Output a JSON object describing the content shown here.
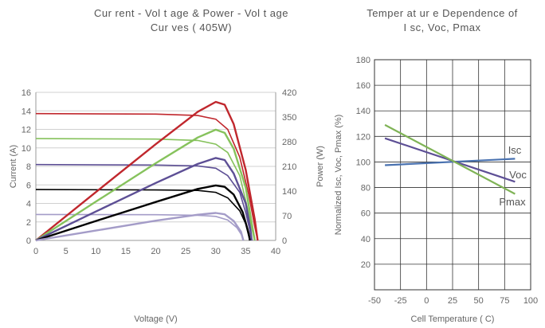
{
  "chart_data": [
    {
      "type": "line",
      "title_line1": "Cur rent - Vol t age & Power - Vol t age",
      "title_line2": "Cur ves ( 405W)",
      "xlabel": "Voltage (V)",
      "ylabel": "Current (A)",
      "y2label": "Power (W)",
      "xlim": [
        0,
        40
      ],
      "ylim": [
        0,
        16
      ],
      "y2lim": [
        0,
        420
      ],
      "xticks": [
        0,
        5,
        10,
        15,
        20,
        25,
        30,
        35,
        40
      ],
      "yticks": [
        0,
        2,
        4,
        6,
        8,
        10,
        12,
        14,
        16
      ],
      "y2ticks": [
        0,
        70,
        140,
        210,
        280,
        350,
        420
      ],
      "grid": "horizontal",
      "colors": {
        "red": "#c0272d",
        "green": "#86c25c",
        "purple": "#5d4f95",
        "black": "#000000",
        "lavender": "#a49cc8"
      },
      "iv_series": [
        {
          "color": "#c0272d",
          "points": [
            [
              0,
              13.7
            ],
            [
              20,
              13.65
            ],
            [
              27,
              13.5
            ],
            [
              30,
              13.1
            ],
            [
              32,
              12.0
            ],
            [
              34,
              9.0
            ],
            [
              35.5,
              5.0
            ],
            [
              36.5,
              1.5
            ],
            [
              37,
              0
            ]
          ]
        },
        {
          "color": "#86c25c",
          "points": [
            [
              0,
              11.0
            ],
            [
              20,
              10.95
            ],
            [
              27,
              10.8
            ],
            [
              30,
              10.4
            ],
            [
              32,
              9.5
            ],
            [
              34,
              7.0
            ],
            [
              35.3,
              3.5
            ],
            [
              36.2,
              0.8
            ],
            [
              36.5,
              0
            ]
          ]
        },
        {
          "color": "#5d4f95",
          "points": [
            [
              0,
              8.2
            ],
            [
              20,
              8.15
            ],
            [
              27,
              8.05
            ],
            [
              30,
              7.8
            ],
            [
              32,
              7.0
            ],
            [
              34,
              5.2
            ],
            [
              35,
              3.0
            ],
            [
              35.8,
              0.8
            ],
            [
              36,
              0
            ]
          ]
        },
        {
          "color": "#000000",
          "points": [
            [
              0,
              5.5
            ],
            [
              20,
              5.45
            ],
            [
              27,
              5.4
            ],
            [
              30,
              5.2
            ],
            [
              32,
              4.6
            ],
            [
              34,
              3.2
            ],
            [
              35,
              1.8
            ],
            [
              35.5,
              0.5
            ],
            [
              35.7,
              0
            ]
          ]
        },
        {
          "color": "#a49cc8",
          "points": [
            [
              0,
              2.8
            ],
            [
              20,
              2.78
            ],
            [
              27,
              2.72
            ],
            [
              30,
              2.6
            ],
            [
              32,
              2.2
            ],
            [
              33.5,
              1.4
            ],
            [
              34.3,
              0.6
            ],
            [
              34.6,
              0
            ]
          ]
        }
      ],
      "pv_series": [
        {
          "color": "#c0272d",
          "points": [
            [
              0,
              0
            ],
            [
              10,
              137
            ],
            [
              20,
              273
            ],
            [
              27,
              365
            ],
            [
              30,
              393
            ],
            [
              31.5,
              385
            ],
            [
              33,
              330
            ],
            [
              35,
              200
            ],
            [
              36.5,
              60
            ],
            [
              37,
              0
            ]
          ]
        },
        {
          "color": "#86c25c",
          "points": [
            [
              0,
              0
            ],
            [
              10,
              110
            ],
            [
              20,
              219
            ],
            [
              27,
              292
            ],
            [
              30,
              314
            ],
            [
              31.5,
              305
            ],
            [
              33,
              260
            ],
            [
              35,
              150
            ],
            [
              36.2,
              30
            ],
            [
              36.5,
              0
            ]
          ]
        },
        {
          "color": "#5d4f95",
          "points": [
            [
              0,
              0
            ],
            [
              10,
              82
            ],
            [
              20,
              163
            ],
            [
              27,
              217
            ],
            [
              30,
              234
            ],
            [
              31.5,
              228
            ],
            [
              33,
              190
            ],
            [
              35,
              105
            ],
            [
              35.8,
              30
            ],
            [
              36,
              0
            ]
          ]
        },
        {
          "color": "#000000",
          "points": [
            [
              0,
              0
            ],
            [
              10,
              55
            ],
            [
              20,
              109
            ],
            [
              27,
              146
            ],
            [
              30,
              156
            ],
            [
              31.5,
              152
            ],
            [
              33,
              130
            ],
            [
              34.5,
              80
            ],
            [
              35.5,
              20
            ],
            [
              35.7,
              0
            ]
          ]
        },
        {
          "color": "#a49cc8",
          "points": [
            [
              0,
              0
            ],
            [
              10,
              28
            ],
            [
              20,
              56
            ],
            [
              27,
              73
            ],
            [
              30,
              78
            ],
            [
              31.5,
              74
            ],
            [
              33,
              55
            ],
            [
              34.2,
              25
            ],
            [
              34.6,
              0
            ]
          ]
        }
      ]
    },
    {
      "type": "line",
      "title_line1": "Temper at ur e Dependence of",
      "title_line2": "I sc, Voc, Pmax",
      "xlabel": "Cell Temperature ( C)",
      "ylabel": "Normalized Isc, Voc, Pmax (%)",
      "xlim": [
        -50,
        100
      ],
      "ylim": [
        0,
        180
      ],
      "xticks": [
        -50,
        -25,
        0,
        25,
        50,
        75,
        100
      ],
      "yticks": [
        20,
        40,
        60,
        80,
        100,
        120,
        140,
        160,
        180
      ],
      "grid": "both",
      "series": [
        {
          "name": "Isc",
          "color": "#4a72b0",
          "x": [
            -40,
            85
          ],
          "y": [
            97.5,
            102.5
          ]
        },
        {
          "name": "Voc",
          "color": "#5d4f95",
          "x": [
            -40,
            85
          ],
          "y": [
            118.5,
            84.5
          ]
        },
        {
          "name": "Pmax",
          "color": "#7fb356",
          "x": [
            -40,
            85
          ],
          "y": [
            129,
            75
          ]
        }
      ]
    }
  ]
}
